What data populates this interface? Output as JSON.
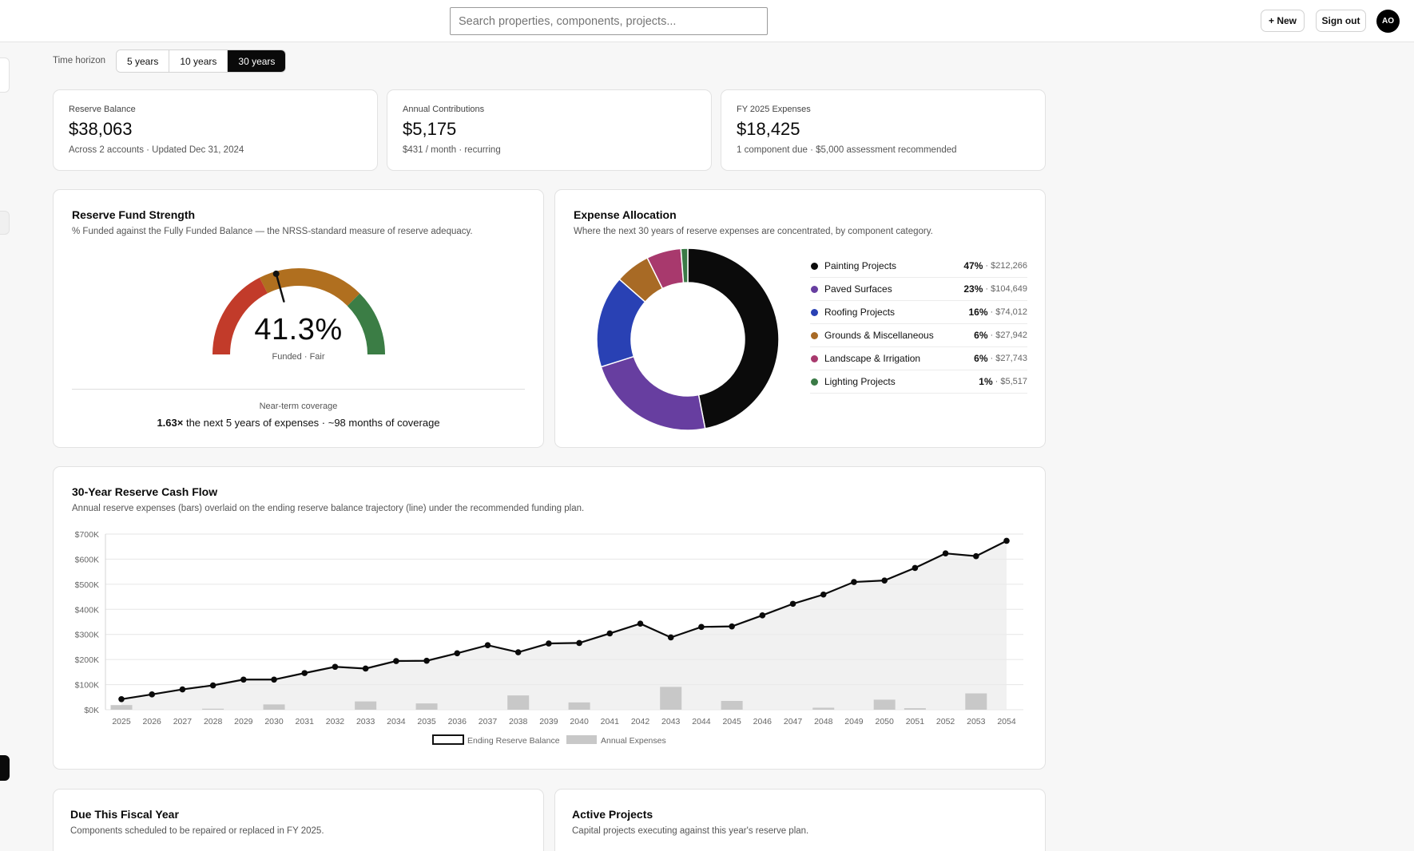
{
  "topbar": {
    "search_placeholder": "Search properties, components, projects...",
    "new_label": "+ New",
    "signout_label": "Sign out",
    "avatar_initials": "AO"
  },
  "horizon": {
    "label": "Time horizon",
    "options": [
      "5 years",
      "10 years",
      "30 years"
    ],
    "selected": "30 years"
  },
  "stats": [
    {
      "label": "Reserve Balance",
      "value": "$38,063",
      "sub": "Across 2 accounts · Updated Dec 31, 2024"
    },
    {
      "label": "Annual Contributions",
      "value": "$5,175",
      "sub": "$431 / month · recurring"
    },
    {
      "label": "FY 2025 Expenses",
      "value": "$18,425",
      "sub": "1 component due · $5,000 assessment recommended"
    }
  ],
  "strength": {
    "title": "Reserve Fund Strength",
    "desc": "% Funded against the Fully Funded Balance — the NRSS-standard measure of reserve adequacy.",
    "percent_text": "41.3%",
    "percent_value": 41.3,
    "status": "Funded · Fair",
    "coverage_label": "Near-term coverage",
    "coverage_mult": "1.63×",
    "coverage_text": " the next 5 years of expenses · ~98 months of coverage",
    "zone_colors": [
      "#c23b2a",
      "#b06f1f",
      "#3b7d45"
    ]
  },
  "allocation": {
    "title": "Expense Allocation",
    "desc": "Where the next 30 years of reserve expenses are concentrated, by component category.",
    "chart_data": {
      "type": "pie",
      "categories": [
        "Painting Projects",
        "Paved Surfaces",
        "Roofing Projects",
        "Grounds & Miscellaneous",
        "Landscape & Irrigation",
        "Lighting Projects"
      ],
      "values": [
        212266,
        104649,
        74012,
        27942,
        27743,
        5517
      ],
      "percent_labels": [
        "47%",
        "23%",
        "16%",
        "6%",
        "6%",
        "1%"
      ],
      "amount_labels": [
        "· $212,266",
        "· $104,649",
        "· $74,012",
        "· $27,942",
        "· $27,743",
        "· $5,517"
      ],
      "colors": [
        "#0b0b0b",
        "#673ea0",
        "#2941b4",
        "#a86a25",
        "#a8396d",
        "#3a7a46"
      ]
    }
  },
  "cashflow": {
    "title": "30-Year Reserve Cash Flow",
    "desc": "Annual reserve expenses (bars) overlaid on the ending reserve balance trajectory (line) under the recommended funding plan.",
    "chart_data": {
      "type": "bar",
      "x": [
        "2025",
        "2026",
        "2027",
        "2028",
        "2029",
        "2030",
        "2031",
        "2032",
        "2033",
        "2034",
        "2035",
        "2036",
        "2037",
        "2038",
        "2039",
        "2040",
        "2041",
        "2042",
        "2043",
        "2044",
        "2045",
        "2046",
        "2047",
        "2048",
        "2049",
        "2050",
        "2051",
        "2052",
        "2053",
        "2054"
      ],
      "y_ticks": [
        "$0K",
        "$100K",
        "$200K",
        "$300K",
        "$400K",
        "$500K",
        "$600K",
        "$700K"
      ],
      "ylim": [
        0,
        700000
      ],
      "series": [
        {
          "name": "Ending Reserve Balance",
          "type": "line",
          "values": [
            42000,
            61000,
            81000,
            97000,
            120000,
            120000,
            146000,
            171000,
            164000,
            194000,
            195000,
            225000,
            257000,
            229000,
            264000,
            266000,
            304000,
            343000,
            288000,
            330000,
            332000,
            376000,
            422000,
            459000,
            509000,
            515000,
            565000,
            623000,
            612000,
            673000
          ]
        },
        {
          "name": "Annual Expenses",
          "type": "bar",
          "values": [
            18425,
            0,
            0,
            4000,
            0,
            21000,
            0,
            0,
            33000,
            0,
            25000,
            0,
            0,
            57000,
            0,
            29000,
            0,
            0,
            91000,
            0,
            35000,
            0,
            0,
            8000,
            0,
            40000,
            6000,
            0,
            65000,
            0
          ]
        }
      ],
      "colors": {
        "line": "#0a0a0a",
        "bar": "#c8c8c8",
        "area": "#ebebeb"
      },
      "grid": true,
      "legend": "bottom"
    }
  },
  "due": {
    "title": "Due This Fiscal Year",
    "desc": "Components scheduled to be repaired or replaced in FY 2025."
  },
  "projects": {
    "title": "Active Projects",
    "desc": "Capital projects executing against this year's reserve plan."
  }
}
